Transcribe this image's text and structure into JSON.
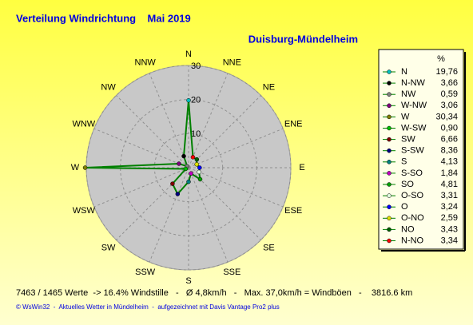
{
  "chart_data": {
    "type": "radar",
    "title": "Verteilung Windrichtung    Mai 2019",
    "subtitle": "Duisburg-Mündelheim",
    "directions": [
      "N",
      "NNE",
      "NE",
      "ENE",
      "E",
      "ESE",
      "SE",
      "SSE",
      "S",
      "SSW",
      "SW",
      "WSW",
      "W",
      "WNW",
      "NW",
      "NNW"
    ],
    "rlim": [
      0,
      30
    ],
    "rticks": [
      10,
      20,
      30
    ],
    "line_color": "#008000",
    "legend_title": "%",
    "categories": [
      "N",
      "N-NW",
      "NW",
      "W-NW",
      "W",
      "W-SW",
      "SW",
      "S-SW",
      "S",
      "S-SO",
      "SO",
      "O-SO",
      "O",
      "O-NO",
      "NO",
      "N-NO"
    ],
    "values": [
      19.76,
      3.66,
      0.59,
      3.06,
      30.34,
      0.9,
      6.66,
      8.36,
      4.13,
      1.84,
      4.81,
      3.31,
      3.24,
      2.59,
      3.43,
      3.34
    ],
    "value_labels": [
      "19,76",
      "3,66",
      "0,59",
      "3,06",
      "30,34",
      "0,90",
      "6,66",
      "8,36",
      "4,13",
      "1,84",
      "4,81",
      "3,31",
      "3,24",
      "2,59",
      "3,43",
      "3,34"
    ],
    "colors": [
      "#00c0c0",
      "#000000",
      "#808080",
      "#800080",
      "#808000",
      "#00c000",
      "#800000",
      "#000080",
      "#008080",
      "#c000c0",
      "#00a000",
      "#e0ffe0",
      "#0000ff",
      "#e0e000",
      "#006000",
      "#ff0000"
    ],
    "footer": "7463 / 1465 Werte  -> 16.4% Windstille   -   Ø 4,8km/h   -   Max. 37,0km/h = Windböen   -    3816.6 km",
    "credit": "© WsWin32  -  Aktuelles Wetter in Mündelheim  -  aufgezeichnet mit Davis Vantage Pro2 plus"
  }
}
